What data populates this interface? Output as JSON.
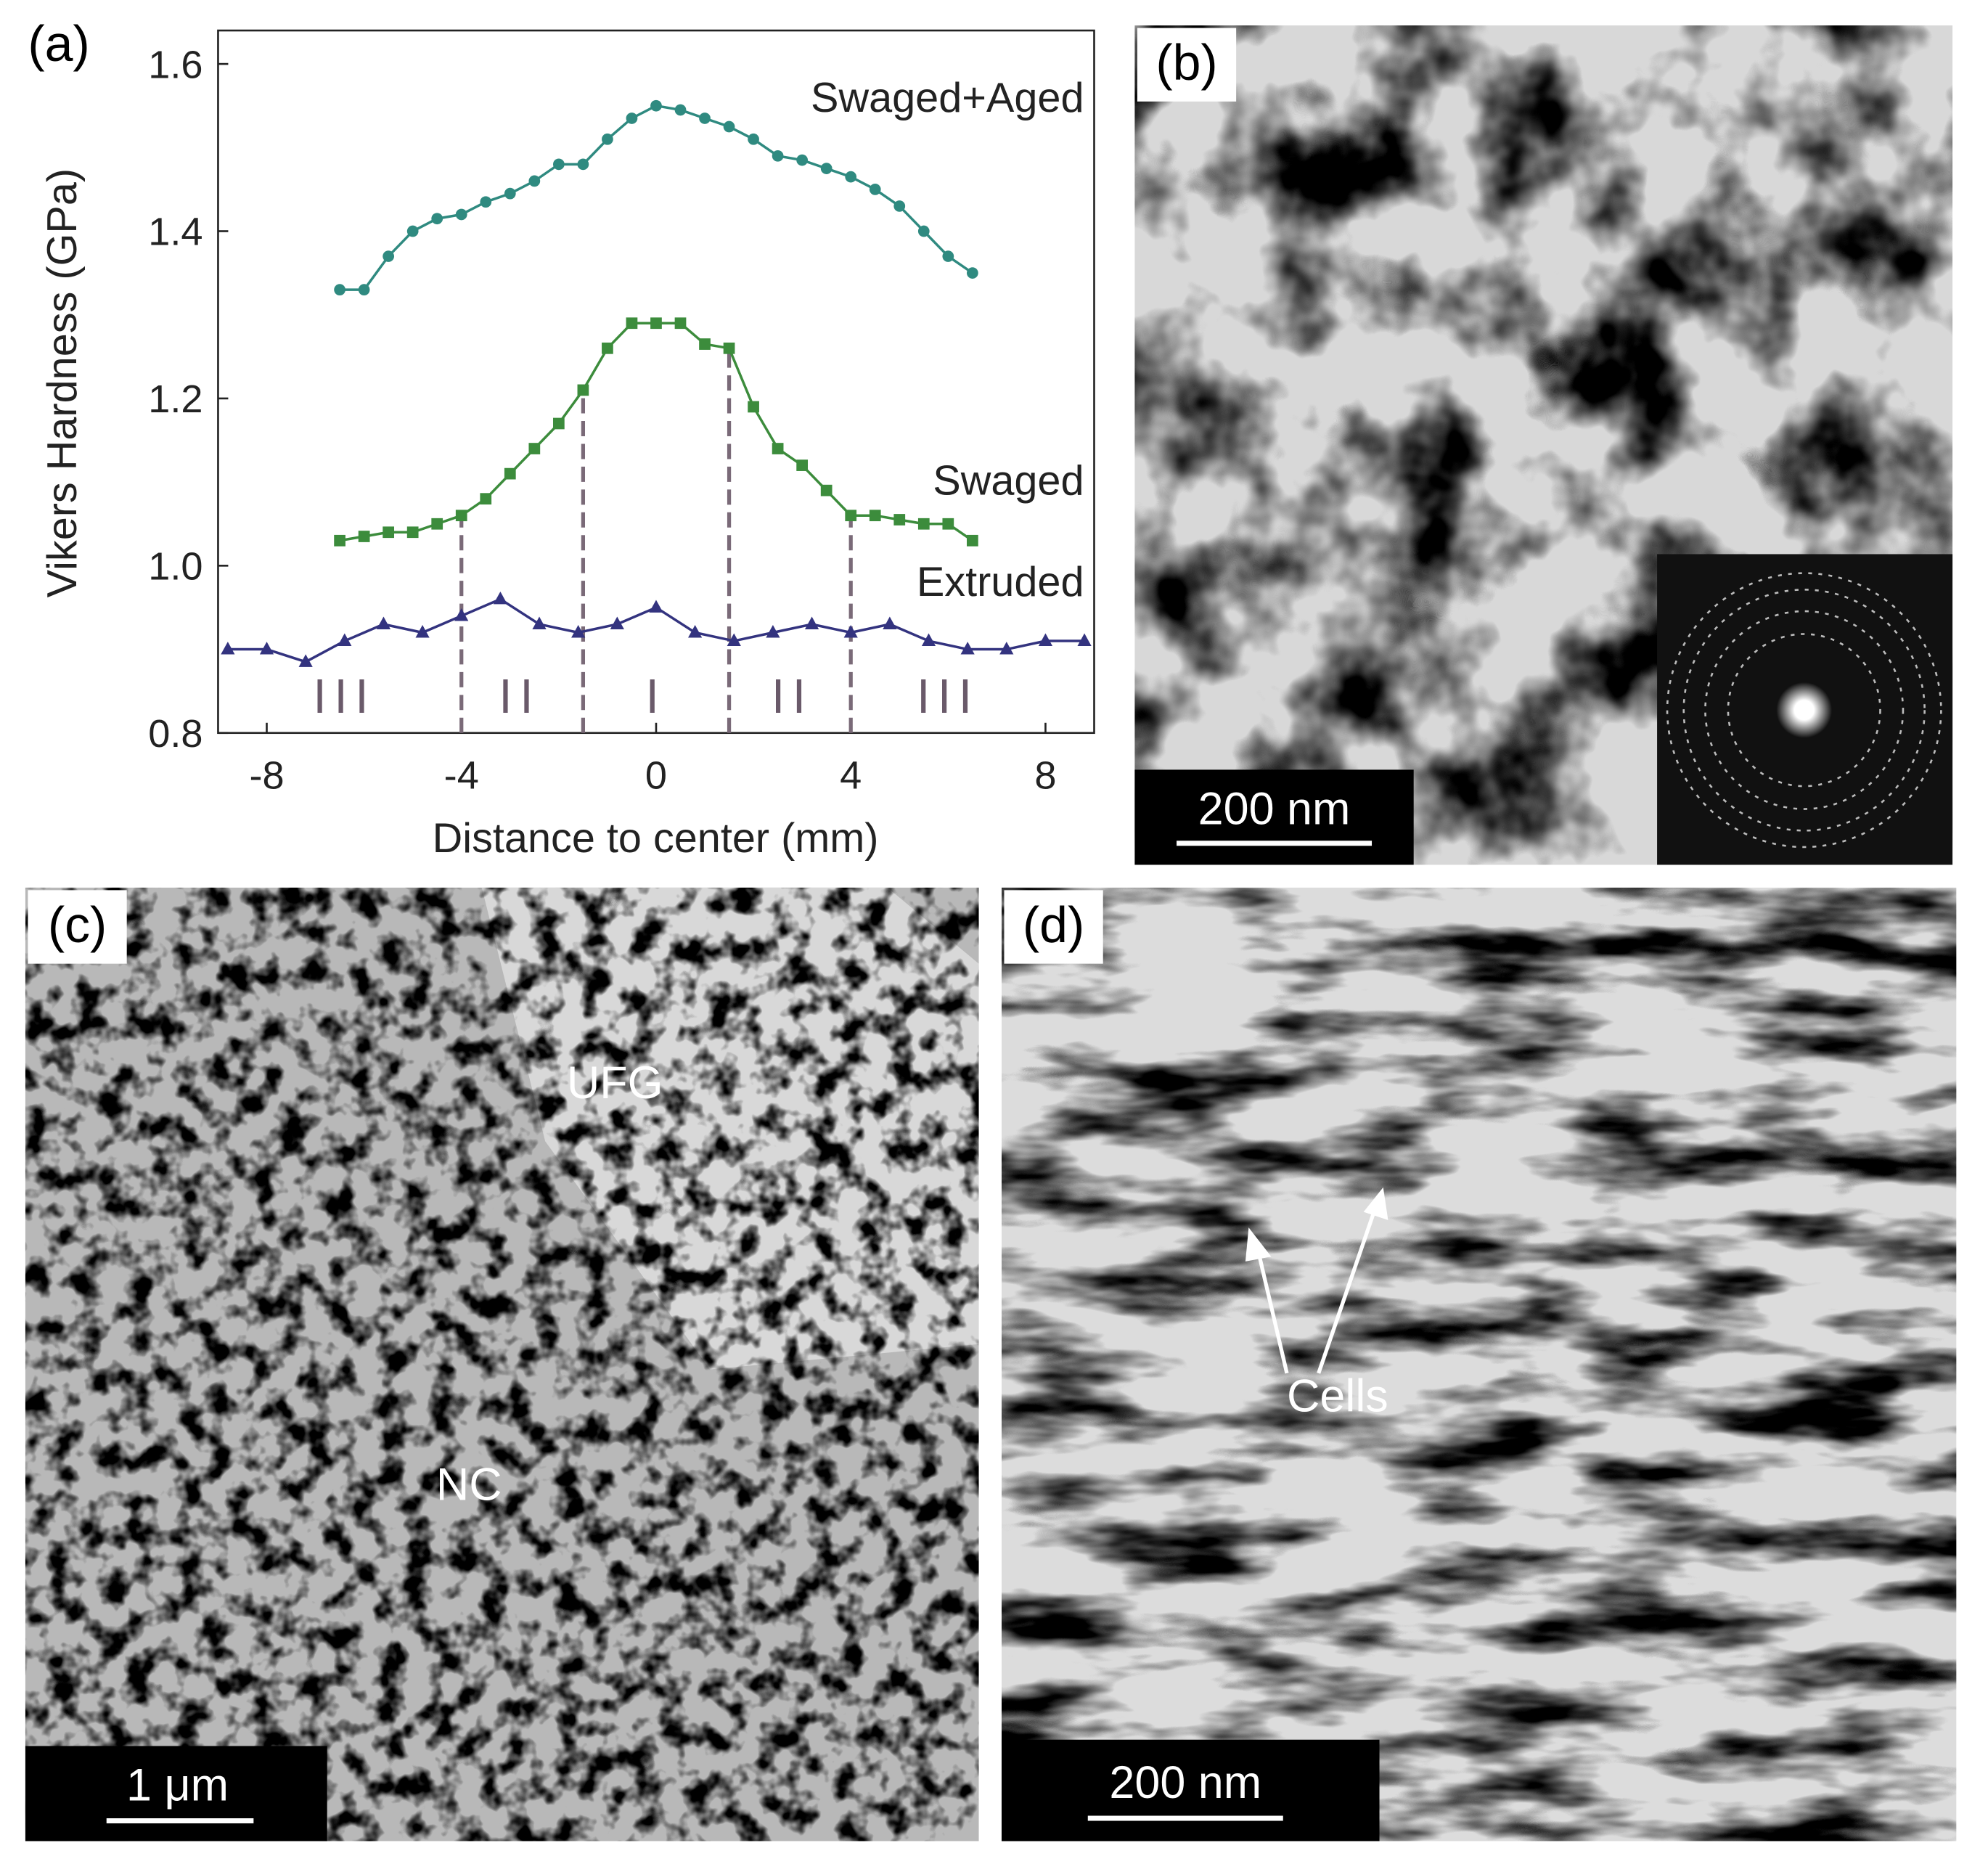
{
  "chart_data": {
    "type": "line",
    "panel_label": "(a)",
    "x_label": "Distance to center (mm)",
    "y_label": "Vikers Hardness (GPa)",
    "xlim": [
      -9,
      9
    ],
    "xticks": [
      -8,
      -4,
      0,
      4,
      8
    ],
    "ylim": [
      0.8,
      1.64
    ],
    "yticks": [
      0.8,
      {
        "value": 1,
        "label": "1.0"
      },
      1.2,
      1.4,
      1.6
    ],
    "series": [
      {
        "name": "Swaged+Aged",
        "color": "#2f8a80",
        "marker": "circle",
        "x": [
          -6.5,
          -6,
          -5.5,
          -5,
          -4.5,
          -4,
          -3.5,
          -3,
          -2.5,
          -2,
          -1.5,
          -1,
          -0.5,
          0,
          0.5,
          1,
          1.5,
          2,
          2.5,
          3,
          3.5,
          4,
          4.5,
          5,
          5.5,
          6,
          6.5
        ],
        "values": [
          1.33,
          1.33,
          1.37,
          1.4,
          1.415,
          1.42,
          1.435,
          1.445,
          1.46,
          1.48,
          1.48,
          1.51,
          1.535,
          1.55,
          1.545,
          1.535,
          1.525,
          1.51,
          1.49,
          1.485,
          1.475,
          1.465,
          1.45,
          1.43,
          1.4,
          1.37,
          1.35
        ]
      },
      {
        "name": "Swaged",
        "color": "#3c8c3c",
        "marker": "square",
        "x": [
          -6.5,
          -6,
          -5.5,
          -5,
          -4.5,
          -4,
          -3.5,
          -3,
          -2.5,
          -2,
          -1.5,
          -1,
          -0.5,
          0,
          0.5,
          1,
          1.5,
          2,
          2.5,
          3,
          3.5,
          4,
          4.5,
          5,
          5.5,
          6,
          6.5
        ],
        "values": [
          1.03,
          1.035,
          1.04,
          1.04,
          1.05,
          1.06,
          1.08,
          1.11,
          1.14,
          1.17,
          1.21,
          1.26,
          1.29,
          1.29,
          1.29,
          1.265,
          1.26,
          1.19,
          1.14,
          1.12,
          1.09,
          1.06,
          1.06,
          1.055,
          1.05,
          1.05,
          1.03
        ]
      },
      {
        "name": "Extruded",
        "color": "#33337f",
        "marker": "triangle",
        "x": [
          -8.8,
          -8,
          -7.2,
          -6.4,
          -5.6,
          -4.8,
          -4,
          -3.2,
          -2.4,
          -1.6,
          -0.8,
          0,
          0.8,
          1.6,
          2.4,
          3.2,
          4,
          4.8,
          5.6,
          6.4,
          7.2,
          8,
          8.8
        ],
        "values": [
          0.9,
          0.9,
          0.885,
          0.91,
          0.93,
          0.92,
          0.94,
          0.96,
          0.93,
          0.92,
          0.93,
          0.95,
          0.92,
          0.91,
          0.92,
          0.93,
          0.92,
          0.93,
          0.91,
          0.9,
          0.9,
          0.91,
          0.91
        ]
      }
    ],
    "dividers": {
      "x": [
        -4,
        -1.5,
        1.5,
        4
      ],
      "values": [
        1.06,
        1.21,
        1.26,
        1.06
      ]
    },
    "regions": {
      "labels": [
        "III",
        "II",
        "I",
        "II",
        "III"
      ],
      "x": [
        -6.4,
        -2.8,
        0,
        2.8,
        6
      ]
    }
  },
  "micrographs": {
    "b": {
      "label": "(b)",
      "scale_bar": "200 nm"
    },
    "c": {
      "label": "(c)",
      "scale_bar": "1 μm",
      "annotations": [
        "UFG",
        "NC"
      ]
    },
    "d": {
      "label": "(d)",
      "scale_bar": "200 nm",
      "annotations": [
        "Cells"
      ]
    }
  }
}
